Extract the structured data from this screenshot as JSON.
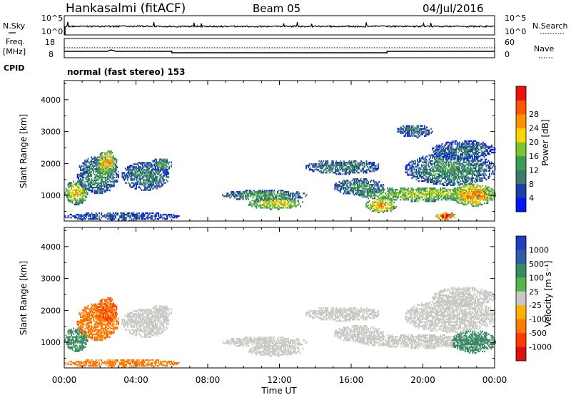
{
  "header": {
    "station": "Hankasalmi (fitACF)",
    "beam": "Beam 05",
    "date": "04/Jul/2016"
  },
  "top_panels": {
    "nsky_label": "N.Sky",
    "nsearch_label": "N.Search",
    "noise_ticks": [
      "10^5",
      "10^0"
    ],
    "freq_label_1": "Freq.",
    "freq_label_2": "[MHz]",
    "freq_ticks": [
      "18",
      "8"
    ],
    "nave_label": "Nave",
    "nave_ticks": [
      "60",
      "0"
    ],
    "cpid_label": "CPID",
    "cpid_value": "normal (fast stereo) 153"
  },
  "axes": {
    "xlabel": "Time UT",
    "ylabel": "Slant Range [km]",
    "x_ticks": [
      "00:00",
      "04:00",
      "08:00",
      "12:00",
      "16:00",
      "20:00",
      "00:00"
    ],
    "y_ticks": [
      "1000",
      "2000",
      "3000",
      "4000"
    ]
  },
  "colorbars": {
    "power_label": "Power [dB]",
    "power_ticks": [
      "4",
      "8",
      "12",
      "16",
      "20",
      "24",
      "28"
    ],
    "power_colors": [
      "#0018ff",
      "#1c3ea8",
      "#3d7a6a",
      "#3c9e52",
      "#7ac62e",
      "#ffd500",
      "#ff9000",
      "#ff5500",
      "#ee1010"
    ],
    "velocity_label": "Velocity [m s⁻¹]",
    "velocity_ticks": [
      "1000",
      "500",
      "100",
      "25",
      "-25",
      "-100",
      "-500",
      "-1000"
    ],
    "velocity_colors": [
      "#2040c0",
      "#2e5fa8",
      "#3a8a66",
      "#54b848",
      "#c8c8c4",
      "#ffb000",
      "#ff7a00",
      "#ff3a00",
      "#e01010"
    ]
  },
  "chart_data": [
    {
      "type": "heatmap",
      "name": "Power",
      "x_range": [
        "00:00",
        "24:00"
      ],
      "ylim": [
        200,
        4600
      ],
      "zunit": "dB",
      "zlim": [
        0,
        30
      ],
      "echo_regions": [
        {
          "t": [
            0.0,
            1.3
          ],
          "range": [
            700,
            1450
          ],
          "level": 16
        },
        {
          "t": [
            0.0,
            6.4
          ],
          "range": [
            200,
            450
          ],
          "level": 6
        },
        {
          "t": [
            0.7,
            3.0
          ],
          "range": [
            1050,
            2200
          ],
          "level": 9
        },
        {
          "t": [
            1.8,
            2.9
          ],
          "range": [
            1600,
            2400
          ],
          "level": 18
        },
        {
          "t": [
            3.2,
            5.8
          ],
          "range": [
            1150,
            2050
          ],
          "level": 8
        },
        {
          "t": [
            4.8,
            6.0
          ],
          "range": [
            1750,
            2150
          ],
          "level": 10
        },
        {
          "t": [
            8.8,
            13.5
          ],
          "range": [
            820,
            1150
          ],
          "level": 10
        },
        {
          "t": [
            10.2,
            13.3
          ],
          "range": [
            550,
            900
          ],
          "level": 16
        },
        {
          "t": [
            13.4,
            17.6
          ],
          "range": [
            1650,
            2100
          ],
          "level": 8
        },
        {
          "t": [
            15.0,
            17.8
          ],
          "range": [
            1000,
            1500
          ],
          "level": 9
        },
        {
          "t": [
            16.2,
            24.0
          ],
          "range": [
            800,
            1250
          ],
          "level": 14
        },
        {
          "t": [
            16.8,
            18.5
          ],
          "range": [
            450,
            900
          ],
          "level": 18
        },
        {
          "t": [
            19.0,
            24.0
          ],
          "range": [
            1300,
            2300
          ],
          "level": 9
        },
        {
          "t": [
            20.5,
            24.0
          ],
          "range": [
            2100,
            2700
          ],
          "level": 7
        },
        {
          "t": [
            18.5,
            20.5
          ],
          "range": [
            2800,
            3200
          ],
          "level": 7
        },
        {
          "t": [
            21.6,
            24.0
          ],
          "range": [
            650,
            1350
          ],
          "level": 20
        },
        {
          "t": [
            20.7,
            21.8
          ],
          "range": [
            200,
            450
          ],
          "level": 26
        }
      ]
    },
    {
      "type": "heatmap",
      "name": "Velocity",
      "x_range": [
        "00:00",
        "24:00"
      ],
      "ylim": [
        200,
        4600
      ],
      "zunit": "m s^-1",
      "zlim": [
        -1000,
        1000
      ],
      "echo_regions": [
        {
          "t": [
            0.0,
            1.3
          ],
          "range": [
            700,
            1450
          ],
          "level": 120
        },
        {
          "t": [
            0.0,
            6.4
          ],
          "range": [
            200,
            450
          ],
          "level": -150
        },
        {
          "t": [
            0.7,
            3.0
          ],
          "range": [
            1050,
            2200
          ],
          "level": -200
        },
        {
          "t": [
            1.8,
            2.9
          ],
          "range": [
            1600,
            2400
          ],
          "level": -300
        },
        {
          "t": [
            3.2,
            5.8
          ],
          "range": [
            1150,
            2050
          ],
          "level": 0
        },
        {
          "t": [
            4.8,
            6.0
          ],
          "range": [
            1750,
            2150
          ],
          "level": 0
        },
        {
          "t": [
            8.8,
            13.5
          ],
          "range": [
            820,
            1150
          ],
          "level": 0
        },
        {
          "t": [
            10.2,
            13.3
          ],
          "range": [
            550,
            900
          ],
          "level": 0
        },
        {
          "t": [
            13.4,
            17.6
          ],
          "range": [
            1650,
            2100
          ],
          "level": 0
        },
        {
          "t": [
            15.0,
            17.8
          ],
          "range": [
            1000,
            1500
          ],
          "level": 0
        },
        {
          "t": [
            16.2,
            24.0
          ],
          "range": [
            800,
            1250
          ],
          "level": 0
        },
        {
          "t": [
            19.0,
            24.0
          ],
          "range": [
            1300,
            2300
          ],
          "level": 0
        },
        {
          "t": [
            20.5,
            24.0
          ],
          "range": [
            2100,
            2700
          ],
          "level": 0
        },
        {
          "t": [
            21.6,
            24.0
          ],
          "range": [
            650,
            1350
          ],
          "level": 180
        }
      ]
    }
  ]
}
